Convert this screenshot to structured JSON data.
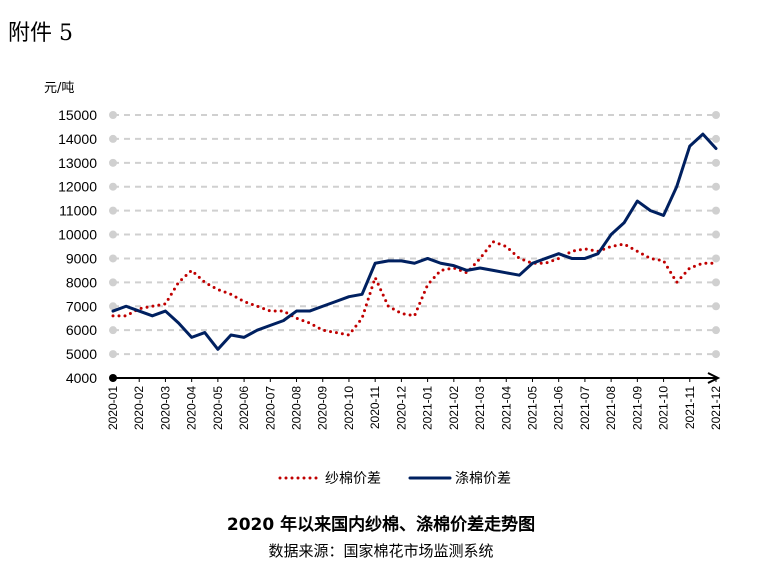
{
  "attachment": "附件 5",
  "chart_data": {
    "type": "line",
    "title": "2020 年以来国内纱棉、涤棉价差走势图",
    "y_label": "元/吨",
    "source": "数据来源：国家棉花市场监测系统",
    "categories": [
      "2020-01",
      null,
      "2020-02",
      null,
      "2020-03",
      null,
      "2020-04",
      null,
      "2020-05",
      null,
      "2020-06",
      null,
      "2020-07",
      null,
      "2020-08",
      null,
      "2020-09",
      null,
      "2020-10",
      null,
      "2020-11",
      null,
      "2020-12",
      null,
      "2021-01",
      null,
      "2021-02",
      null,
      "2021-03",
      null,
      "2021-04",
      null,
      "2021-05",
      null,
      "2021-06",
      null,
      "2021-07",
      null,
      "2021-08",
      null,
      "2021-09",
      null,
      "2021-10",
      null,
      "2021-11",
      null,
      "2021-12"
    ],
    "series": [
      {
        "name": "纱棉价差",
        "color": "#c00000",
        "style": "dotted",
        "values": [
          6600,
          6600,
          6900,
          7000,
          7100,
          8000,
          8500,
          8000,
          7700,
          7500,
          7200,
          7000,
          6800,
          6800,
          6500,
          6300,
          6000,
          5900,
          5800,
          6500,
          8200,
          7000,
          6700,
          6600,
          7900,
          8500,
          8600,
          8400,
          9000,
          9700,
          9500,
          9000,
          8800,
          8800,
          9000,
          9300,
          9400,
          9300,
          9500,
          9600,
          9300,
          9000,
          8900,
          8000,
          8600,
          8800,
          8800
        ]
      },
      {
        "name": "涤棉价差",
        "color": "#002060",
        "style": "solid",
        "values": [
          6800,
          7000,
          6800,
          6600,
          6800,
          6300,
          5700,
          5900,
          5200,
          5800,
          5700,
          6000,
          6200,
          6400,
          6800,
          6800,
          7000,
          7200,
          7400,
          7500,
          8800,
          8900,
          8900,
          8800,
          9000,
          8800,
          8700,
          8500,
          8600,
          8500,
          8400,
          8300,
          8800,
          9000,
          9200,
          9000,
          9000,
          9200,
          10000,
          10500,
          11400,
          11000,
          10800,
          12000,
          13700,
          14200,
          13600
        ]
      }
    ],
    "ylim": [
      4000,
      15000
    ],
    "yticks": [
      4000,
      5000,
      6000,
      7000,
      8000,
      9000,
      10000,
      11000,
      12000,
      13000,
      14000,
      15000
    ],
    "grid": true
  }
}
